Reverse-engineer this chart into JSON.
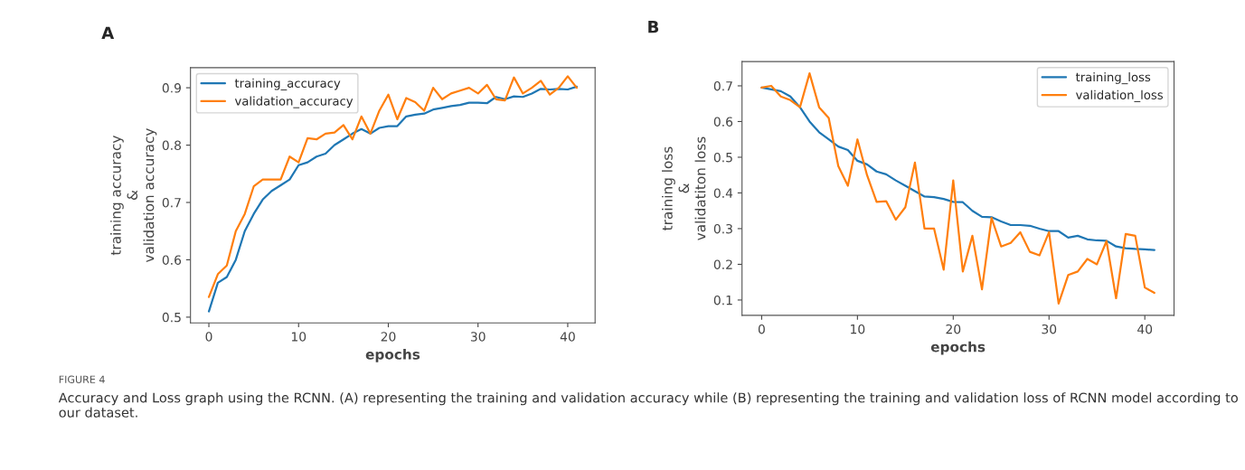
{
  "chart_data": [
    {
      "type": "line",
      "title": "A",
      "xlabel": "epochs",
      "ylabel": "training accuracy\n&\nvalidation accuracy",
      "x": [
        0,
        1,
        2,
        3,
        4,
        5,
        6,
        7,
        8,
        9,
        10,
        11,
        12,
        13,
        14,
        15,
        16,
        17,
        18,
        19,
        20,
        21,
        22,
        23,
        24,
        25,
        26,
        27,
        28,
        29,
        30,
        31,
        32,
        33,
        34,
        35,
        36,
        37,
        38,
        39,
        40,
        41
      ],
      "series": [
        {
          "name": "training_accuracy",
          "color": "#1f77b4",
          "values": [
            0.51,
            0.56,
            0.57,
            0.6,
            0.65,
            0.68,
            0.705,
            0.72,
            0.73,
            0.74,
            0.765,
            0.77,
            0.78,
            0.785,
            0.8,
            0.81,
            0.82,
            0.828,
            0.82,
            0.83,
            0.833,
            0.833,
            0.85,
            0.853,
            0.855,
            0.862,
            0.865,
            0.868,
            0.87,
            0.874,
            0.874,
            0.873,
            0.884,
            0.88,
            0.885,
            0.884,
            0.89,
            0.898,
            0.897,
            0.898,
            0.897,
            0.902
          ]
        },
        {
          "name": "validation_accuracy",
          "color": "#ff7f0e",
          "values": [
            0.535,
            0.575,
            0.59,
            0.65,
            0.68,
            0.728,
            0.74,
            0.74,
            0.74,
            0.78,
            0.77,
            0.812,
            0.81,
            0.82,
            0.822,
            0.835,
            0.81,
            0.85,
            0.82,
            0.86,
            0.888,
            0.845,
            0.882,
            0.875,
            0.86,
            0.9,
            0.88,
            0.89,
            0.895,
            0.9,
            0.89,
            0.905,
            0.88,
            0.878,
            0.918,
            0.89,
            0.9,
            0.912,
            0.888,
            0.9,
            0.92,
            0.9
          ]
        }
      ],
      "xlim": [
        -2.05,
        43.05
      ],
      "xticks": [
        0,
        10,
        20,
        30,
        40
      ],
      "ylim": [
        0.49,
        0.935
      ],
      "yticks": [
        0.5,
        0.6,
        0.7,
        0.8,
        0.9
      ],
      "grid": false,
      "legend": "top left",
      "annotations": [
        "FIGURE 4",
        "Accuracy and Loss graph using the RCNN. (A) representing the training and validation accuracy while (B) representing the training and validation loss of RCNN model according to our dataset."
      ]
    },
    {
      "type": "line",
      "title": "B",
      "xlabel": "epochs",
      "ylabel": "training loss\n&\nvalidatiton loss",
      "x": [
        0,
        1,
        2,
        3,
        4,
        5,
        6,
        7,
        8,
        9,
        10,
        11,
        12,
        13,
        14,
        15,
        16,
        17,
        18,
        19,
        20,
        21,
        22,
        23,
        24,
        25,
        26,
        27,
        28,
        29,
        30,
        31,
        32,
        33,
        34,
        35,
        36,
        37,
        38,
        39,
        40,
        41
      ],
      "series": [
        {
          "name": "training_loss",
          "color": "#1f77b4",
          "values": [
            0.695,
            0.69,
            0.685,
            0.67,
            0.64,
            0.6,
            0.57,
            0.55,
            0.53,
            0.52,
            0.49,
            0.48,
            0.46,
            0.452,
            0.435,
            0.42,
            0.405,
            0.39,
            0.388,
            0.383,
            0.375,
            0.374,
            0.35,
            0.333,
            0.332,
            0.32,
            0.31,
            0.31,
            0.308,
            0.3,
            0.293,
            0.293,
            0.275,
            0.28,
            0.27,
            0.267,
            0.266,
            0.25,
            0.245,
            0.243,
            0.242,
            0.24
          ]
        },
        {
          "name": "validation_loss",
          "color": "#ff7f0e",
          "values": [
            0.695,
            0.7,
            0.67,
            0.66,
            0.64,
            0.735,
            0.64,
            0.61,
            0.475,
            0.42,
            0.55,
            0.45,
            0.375,
            0.377,
            0.325,
            0.36,
            0.485,
            0.3,
            0.3,
            0.185,
            0.435,
            0.18,
            0.28,
            0.13,
            0.33,
            0.25,
            0.26,
            0.29,
            0.235,
            0.225,
            0.29,
            0.09,
            0.17,
            0.18,
            0.215,
            0.2,
            0.265,
            0.105,
            0.285,
            0.28,
            0.135,
            0.12
          ]
        }
      ],
      "xlim": [
        -2.05,
        43.05
      ],
      "xticks": [
        0,
        10,
        20,
        30,
        40
      ],
      "ylim": [
        0.057,
        0.768
      ],
      "yticks": [
        0.1,
        0.2,
        0.3,
        0.4,
        0.5,
        0.6,
        0.7
      ],
      "grid": false,
      "legend": "top right"
    }
  ]
}
